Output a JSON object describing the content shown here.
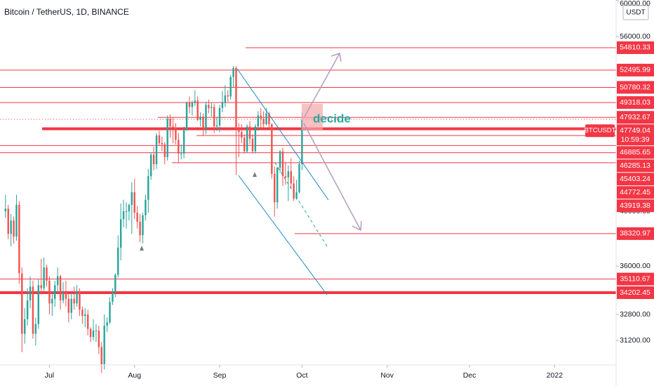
{
  "chart_data": {
    "type": "candlestick",
    "title": "Bitcoin / TetherUS, 1D, BINANCE",
    "currency": "USDT",
    "annotation": "decide",
    "log_scale": true,
    "up_color": "#26a69a",
    "down_color": "#ef5350",
    "level_color": "#f23645",
    "xlim": [
      -18,
      206.4
    ],
    "xticks": [
      {
        "value": 0,
        "label": "Jul"
      },
      {
        "value": 31,
        "label": "Aug"
      },
      {
        "value": 62,
        "label": "Sep"
      },
      {
        "value": 92,
        "label": "Oct"
      },
      {
        "value": 123,
        "label": "Nov"
      },
      {
        "value": 153,
        "label": "Dec"
      },
      {
        "value": 184,
        "label": "2022"
      }
    ],
    "ylim": [
      29760,
      60080
    ],
    "yticks": [
      {
        "value": 60000,
        "label": "60000.00"
      },
      {
        "value": 56000,
        "label": "56000.00"
      },
      {
        "value": 40000,
        "label": "40000.00"
      },
      {
        "value": 36000,
        "label": "36000.00"
      },
      {
        "value": 32800,
        "label": "32800.00"
      },
      {
        "value": 31200,
        "label": "31200.00"
      }
    ],
    "levels": [
      54810.33,
      52495.99,
      50780.32,
      49318.03,
      47932.67,
      46885.65,
      46285.13,
      45403.24,
      44772.45,
      43919.38,
      38320.97,
      35110.67,
      34202.45
    ],
    "last_price": {
      "symbol": "BTCUSDT",
      "value": 47749.04,
      "countdown": "10:59:39"
    },
    "x": [
      -16,
      -15,
      -14,
      -13,
      -12,
      -11,
      -10,
      -9,
      -8,
      -7,
      -6,
      -5,
      -4,
      -3,
      -2,
      -1,
      0,
      1,
      2,
      3,
      4,
      5,
      6,
      7,
      8,
      9,
      10,
      11,
      12,
      13,
      14,
      15,
      16,
      17,
      18,
      19,
      20,
      21,
      22,
      23,
      24,
      25,
      26,
      27,
      28,
      29,
      30,
      31,
      32,
      33,
      34,
      35,
      36,
      37,
      38,
      39,
      40,
      41,
      42,
      43,
      44,
      45,
      46,
      47,
      48,
      49,
      50,
      51,
      52,
      53,
      54,
      55,
      56,
      57,
      58,
      59,
      60,
      61,
      62,
      63,
      64,
      65,
      66,
      67,
      68,
      69,
      70,
      71,
      72,
      73,
      74,
      75,
      76,
      77,
      78,
      79,
      80,
      81,
      82,
      83,
      84,
      85,
      86,
      87,
      88,
      89,
      90,
      91,
      92
    ],
    "open": [
      40000,
      40200,
      38300,
      39300,
      38100,
      40500,
      35500,
      31600,
      32500,
      33700,
      34600,
      31600,
      32200,
      34700,
      34500,
      35900,
      35000,
      33500,
      33800,
      34700,
      35300,
      33700,
      34200,
      33800,
      32900,
      33800,
      33500,
      34300,
      33100,
      32700,
      32800,
      31900,
      31400,
      31800,
      31800,
      30800,
      29800,
      32100,
      32300,
      33600,
      34300,
      35400,
      37300,
      39400,
      40000,
      40000,
      40500,
      41500,
      39900,
      39200,
      38200,
      39700,
      40900,
      42800,
      44600,
      43800,
      46300,
      45600,
      45500,
      44400,
      47800,
      47100,
      47000,
      45900,
      44700,
      44700,
      46800,
      49300,
      48900,
      49300,
      49500,
      47700,
      48000,
      46900,
      49100,
      48800,
      48900,
      47100,
      47200,
      48800,
      49300,
      50000,
      49900,
      51800,
      52700,
      46900,
      46600,
      46100,
      44900,
      47100,
      46000,
      44900,
      47100,
      48100,
      47800,
      47300,
      48300,
      47300,
      43000,
      40700,
      43500,
      44900,
      42800,
      42700,
      43200,
      42200,
      41000,
      41500,
      43800
    ],
    "high": [
      41300,
      40500,
      39800,
      39600,
      41300,
      40800,
      35900,
      33200,
      34500,
      35300,
      35000,
      32600,
      35100,
      36500,
      36600,
      36100,
      35300,
      34300,
      35000,
      35900,
      35400,
      34900,
      35000,
      34100,
      34200,
      34600,
      34700,
      34500,
      33300,
      33200,
      33100,
      32000,
      32500,
      32200,
      32100,
      31100,
      32800,
      32600,
      33900,
      34500,
      35500,
      38200,
      40600,
      40900,
      40700,
      40600,
      42300,
      42600,
      40400,
      39800,
      39900,
      41300,
      43400,
      44800,
      45300,
      46500,
      46700,
      46200,
      45700,
      48100,
      48200,
      47900,
      47400,
      46500,
      45500,
      47100,
      49400,
      49900,
      49500,
      50500,
      49900,
      48400,
      48300,
      49400,
      49600,
      49300,
      49200,
      48000,
      49100,
      50400,
      51000,
      50500,
      52000,
      52900,
      52900,
      47400,
      47300,
      46400,
      47300,
      47600,
      46400,
      47300,
      48500,
      48800,
      48500,
      48800,
      48400,
      47400,
      43600,
      43600,
      45000,
      45200,
      44000,
      43700,
      44300,
      42800,
      42500,
      44100,
      48400
    ],
    "low": [
      39500,
      37900,
      37400,
      37600,
      37800,
      34800,
      30500,
      31000,
      32100,
      33200,
      31300,
      30900,
      31900,
      34100,
      34300,
      34600,
      32800,
      32700,
      33300,
      34200,
      33100,
      33500,
      33300,
      32300,
      32500,
      33100,
      33300,
      32700,
      32200,
      32000,
      31500,
      31100,
      31200,
      31100,
      30400,
      29300,
      29500,
      31700,
      32200,
      33400,
      33900,
      35200,
      36400,
      38800,
      38700,
      39300,
      38300,
      39400,
      38700,
      37700,
      37600,
      39300,
      39900,
      42500,
      43300,
      43400,
      45400,
      44900,
      43800,
      44100,
      46100,
      45600,
      45500,
      43900,
      44200,
      44300,
      46700,
      48300,
      48100,
      49000,
      47600,
      47100,
      46300,
      46400,
      48300,
      48000,
      46500,
      46700,
      46600,
      48400,
      48900,
      49400,
      49600,
      50800,
      42900,
      44400,
      45600,
      44700,
      44800,
      45500,
      44700,
      44700,
      46700,
      46800,
      47000,
      47200,
      46900,
      42600,
      39600,
      40200,
      43100,
      42000,
      42100,
      40800,
      41800,
      40800,
      40900,
      41400,
      43300
    ],
    "close": [
      40200,
      38300,
      39300,
      38100,
      40500,
      35500,
      31600,
      32500,
      33700,
      34600,
      31600,
      32200,
      34700,
      34500,
      35900,
      35000,
      33500,
      33800,
      34700,
      35300,
      33700,
      34200,
      33800,
      32900,
      33800,
      33500,
      34300,
      33100,
      32700,
      32800,
      31900,
      31400,
      31800,
      31800,
      30800,
      29800,
      32100,
      32300,
      33600,
      34300,
      35400,
      37300,
      39400,
      40000,
      40000,
      40500,
      41500,
      39900,
      39200,
      38200,
      39700,
      40900,
      42800,
      44600,
      43800,
      46300,
      45600,
      45500,
      44400,
      47800,
      47100,
      47000,
      45900,
      44700,
      44700,
      46800,
      49300,
      48900,
      49300,
      49500,
      47700,
      48000,
      46900,
      49100,
      48800,
      48900,
      47100,
      47200,
      48800,
      49300,
      50000,
      49900,
      51800,
      52700,
      46900,
      46600,
      46100,
      44900,
      47100,
      46000,
      44900,
      47100,
      48100,
      47800,
      47300,
      48300,
      47300,
      43000,
      40700,
      43500,
      44900,
      42800,
      42700,
      43200,
      42200,
      41000,
      41500,
      43800,
      47700
    ]
  }
}
